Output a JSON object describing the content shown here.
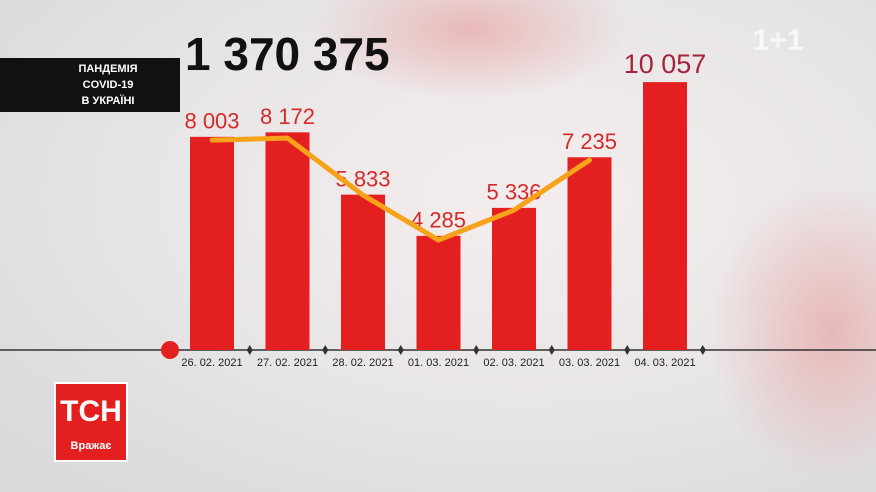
{
  "chart_data": {
    "type": "bar",
    "title": "1 370 375",
    "subtitle": [
      "ПАНДЕМІЯ",
      "COVID-19",
      "В УКРАЇНІ"
    ],
    "categories": [
      "26. 02. 2021",
      "27. 02. 2021",
      "28. 02. 2021",
      "01. 03. 2021",
      "02. 03. 2021",
      "03. 03. 2021",
      "04. 03. 2021"
    ],
    "values": [
      8003,
      8172,
      5833,
      4285,
      5336,
      7235,
      10057
    ],
    "value_labels": [
      "8 003",
      "8 172",
      "5 833",
      "4 285",
      "5 336",
      "7 235",
      "10 057"
    ],
    "color": "#e3201f",
    "trend": {
      "color": "#f7a21b",
      "values": [
        7880,
        7955,
        5816,
        4128,
        5253,
        7129,
        null
      ]
    },
    "ylim": [
      0,
      11000
    ]
  },
  "logo": {
    "brand": "ТСН",
    "tagline": "Вражає",
    "channel": "1+1"
  }
}
